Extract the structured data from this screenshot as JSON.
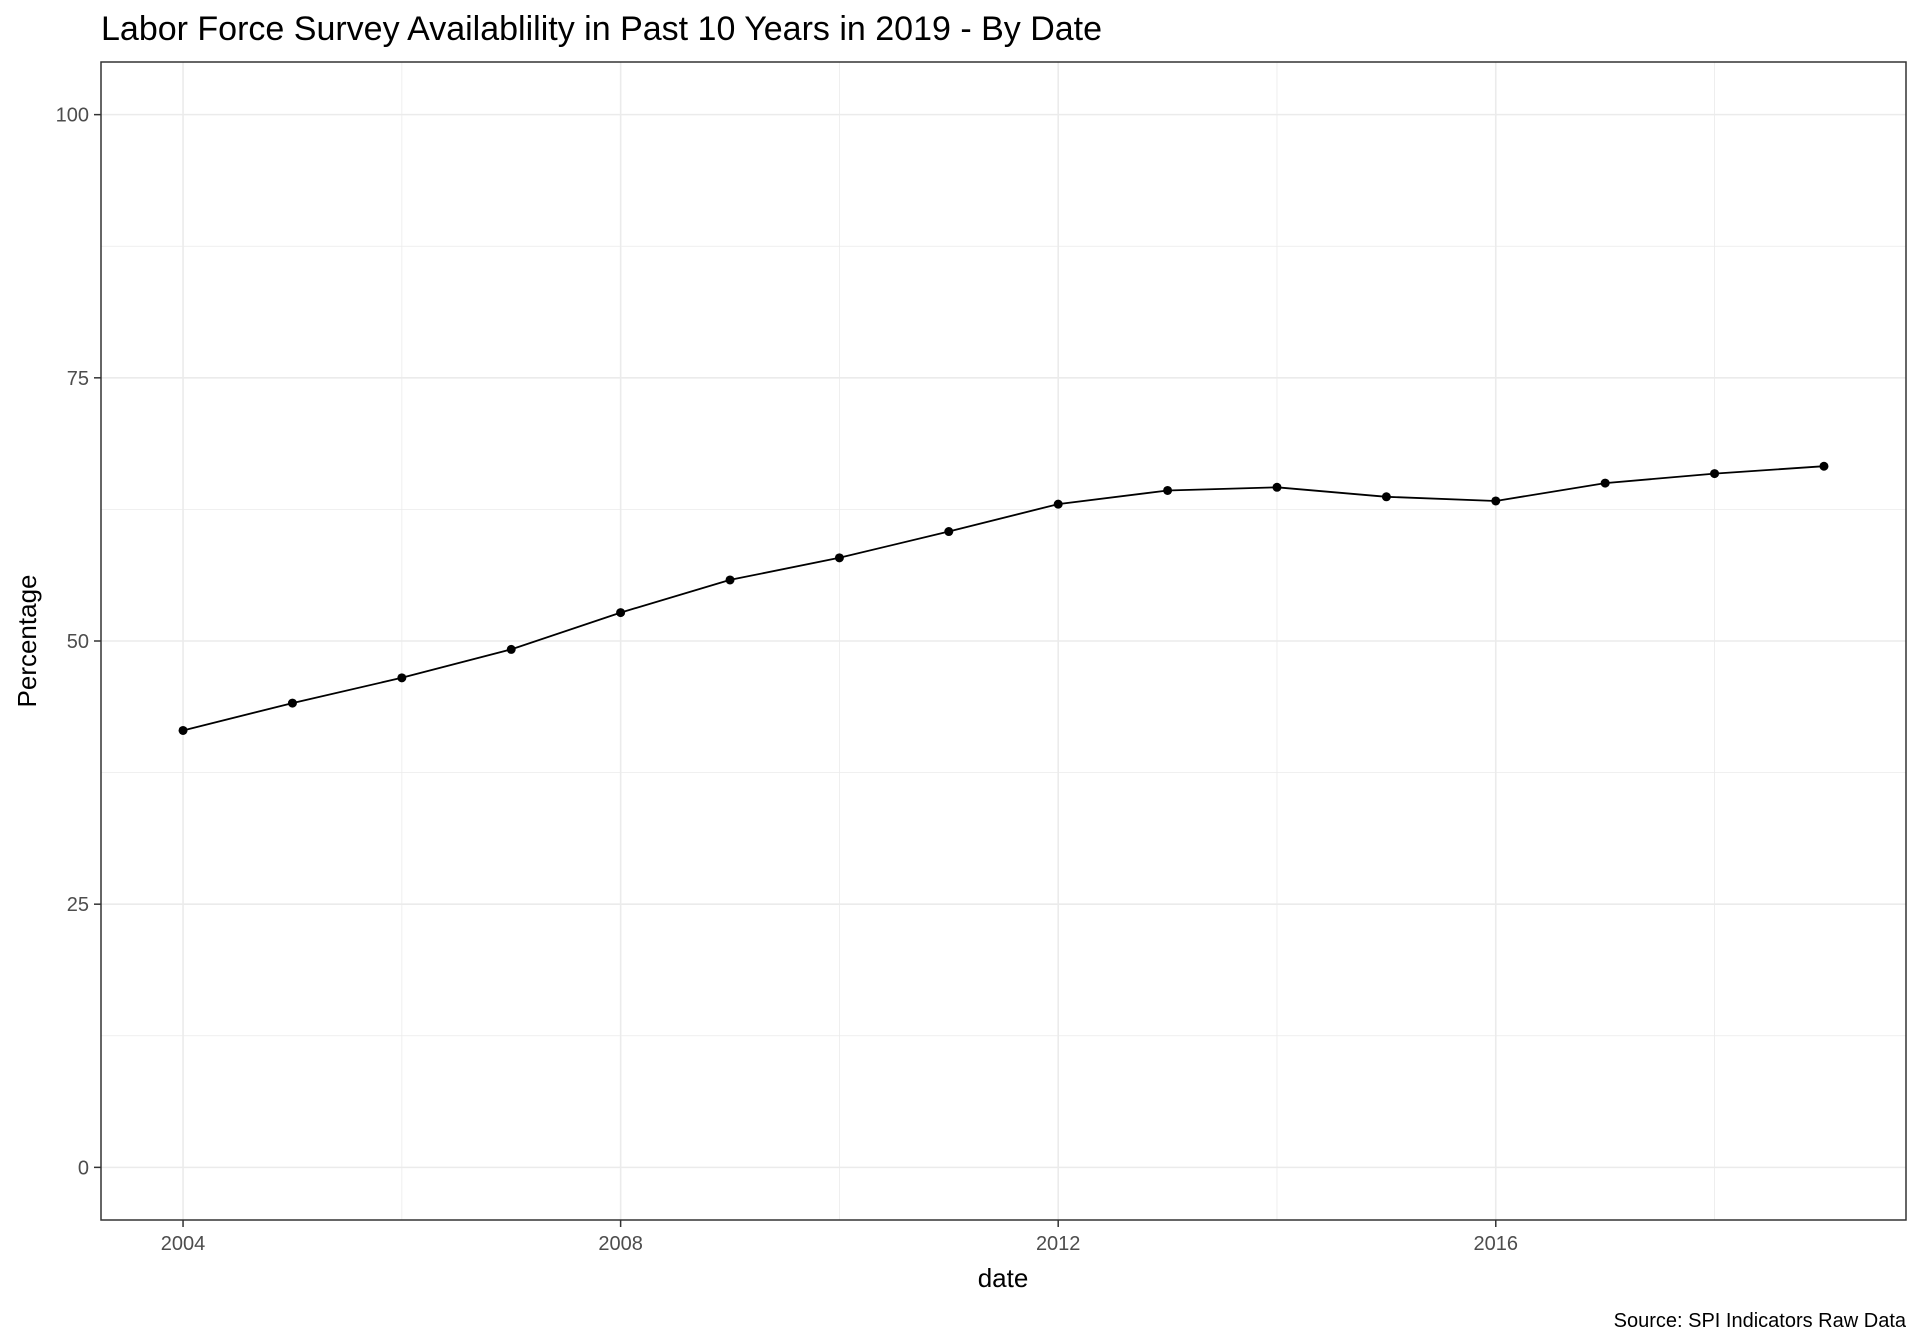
{
  "chart_data": {
    "type": "line",
    "title": "Labor Force Survey Availablility in Past 10 Years in 2019 - By Date",
    "xlabel": "date",
    "ylabel": "Percentage",
    "caption": "Source: SPI Indicators Raw Data",
    "xlim": [
      2003.25,
      2019.75
    ],
    "ylim": [
      -5,
      105
    ],
    "x_ticks": [
      2004,
      2008,
      2012,
      2016
    ],
    "y_ticks": [
      0,
      25,
      50,
      75,
      100
    ],
    "grid": true,
    "series": [
      {
        "x": [
          2004,
          2005,
          2006,
          2007,
          2008,
          2009,
          2010,
          2011,
          2012,
          2013,
          2014,
          2015,
          2016,
          2017,
          2018,
          2019
        ],
        "values": [
          41.5,
          44.1,
          46.5,
          49.2,
          52.7,
          55.8,
          57.9,
          60.4,
          63.0,
          64.3,
          64.6,
          63.7,
          63.3,
          65.0,
          65.9,
          66.6
        ]
      }
    ],
    "colors": {
      "line": "#000000",
      "point": "#000000",
      "grid": "#ebebeb",
      "panel_border": "#333333"
    }
  }
}
